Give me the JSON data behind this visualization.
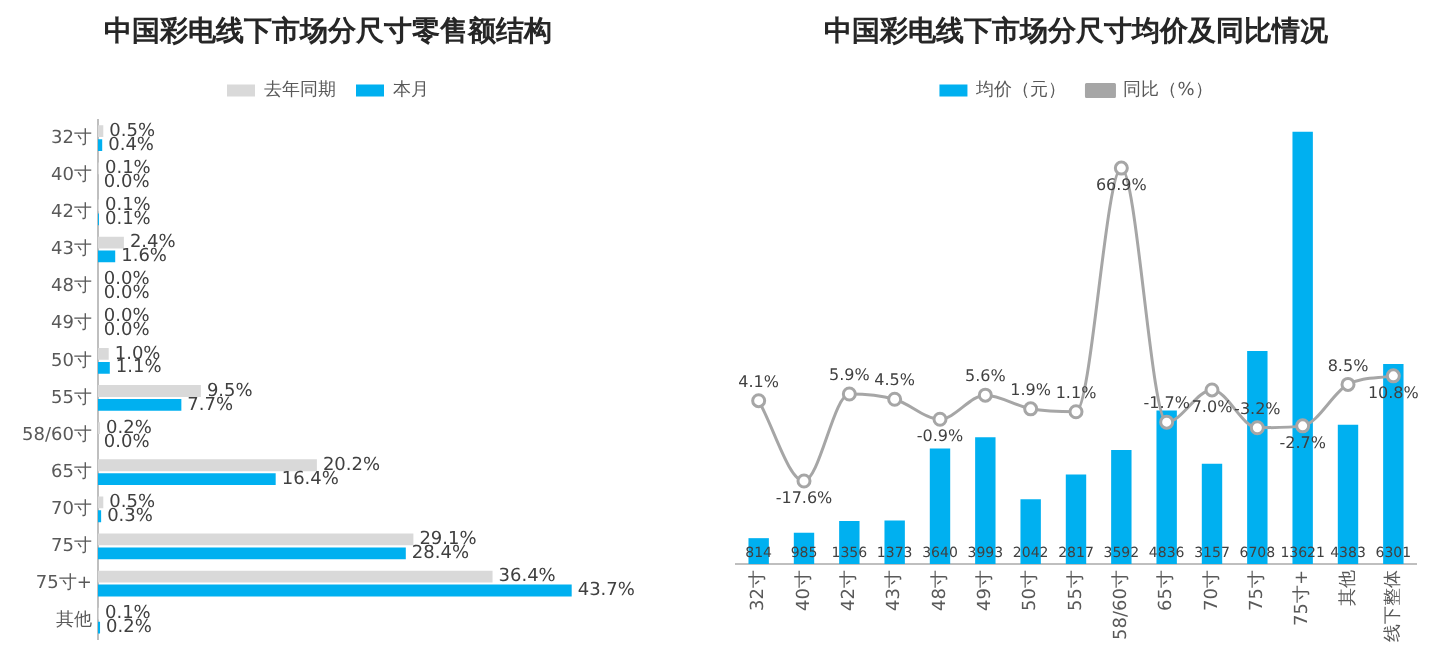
{
  "chart_data": [
    {
      "type": "bar",
      "orientation": "horizontal",
      "title": "中国彩电线下市场分尺寸零售额结构",
      "categories": [
        "32寸",
        "40寸",
        "42寸",
        "43寸",
        "48寸",
        "49寸",
        "50寸",
        "55寸",
        "58/60寸",
        "65寸",
        "70寸",
        "75寸",
        "75寸+",
        "其他"
      ],
      "series": [
        {
          "name": "去年同期",
          "color": "#d9d9d9",
          "values": [
            0.5,
            0.1,
            0.1,
            2.4,
            0.0,
            0.0,
            1.0,
            9.5,
            0.2,
            20.2,
            0.5,
            29.1,
            36.4,
            0.1
          ],
          "value_labels": [
            "0.5%",
            "0.1%",
            "0.1%",
            "2.4%",
            "0.0%",
            "0.0%",
            "1.0%",
            "9.5%",
            "0.2%",
            "20.2%",
            "0.5%",
            "29.1%",
            "36.4%",
            "0.1%"
          ]
        },
        {
          "name": "本月",
          "color": "#00b0f0",
          "values": [
            0.4,
            0.0,
            0.1,
            1.6,
            0.0,
            0.0,
            1.1,
            7.7,
            0.0,
            16.4,
            0.3,
            28.4,
            43.7,
            0.2
          ],
          "value_labels": [
            "0.4%",
            "0.0%",
            "0.1%",
            "1.6%",
            "0.0%",
            "0.0%",
            "1.1%",
            "7.7%",
            "0.0%",
            "16.4%",
            "0.3%",
            "28.4%",
            "43.7%",
            "0.2%"
          ]
        }
      ],
      "legend": "top",
      "tick_labels": "y"
    },
    {
      "type": "bar",
      "title": "中国彩电线下市场分尺寸均价及同比情况",
      "categories": [
        "32寸",
        "40寸",
        "42寸",
        "43寸",
        "48寸",
        "49寸",
        "50寸",
        "55寸",
        "58/60寸",
        "65寸",
        "70寸",
        "75寸",
        "75寸+",
        "其他",
        "线下整体"
      ],
      "series": [
        {
          "name": "均价（元）",
          "type": "bar",
          "color": "#00b0f0",
          "values": [
            814,
            985,
            1356,
            1373,
            3640,
            3993,
            2042,
            2817,
            3592,
            4836,
            3157,
            6708,
            13621,
            4383,
            6301
          ],
          "value_labels": [
            "814",
            "985",
            "1356",
            "1373",
            "3640",
            "3993",
            "2042",
            "2817",
            "3592",
            "4836",
            "3157",
            "6708",
            "13621",
            "4383",
            "6301"
          ]
        },
        {
          "name": "同比（%）",
          "type": "line",
          "axis": "y2",
          "color": "#a6a6a6",
          "values": [
            4.1,
            -17.6,
            5.9,
            4.5,
            -0.9,
            5.6,
            1.9,
            1.1,
            66.9,
            -1.7,
            7.0,
            -3.2,
            -2.7,
            8.5,
            10.8
          ],
          "value_labels": [
            "4.1%",
            "-17.6%",
            "5.9%",
            "4.5%",
            "-0.9%",
            "5.6%",
            "1.9%",
            "1.1%",
            "66.9%",
            "-1.7%",
            "7.0%",
            "-3.2%",
            "-2.7%",
            "8.5%",
            "10.8%"
          ]
        }
      ],
      "legend": "top",
      "tick_labels": "x",
      "marker": "circle"
    }
  ]
}
